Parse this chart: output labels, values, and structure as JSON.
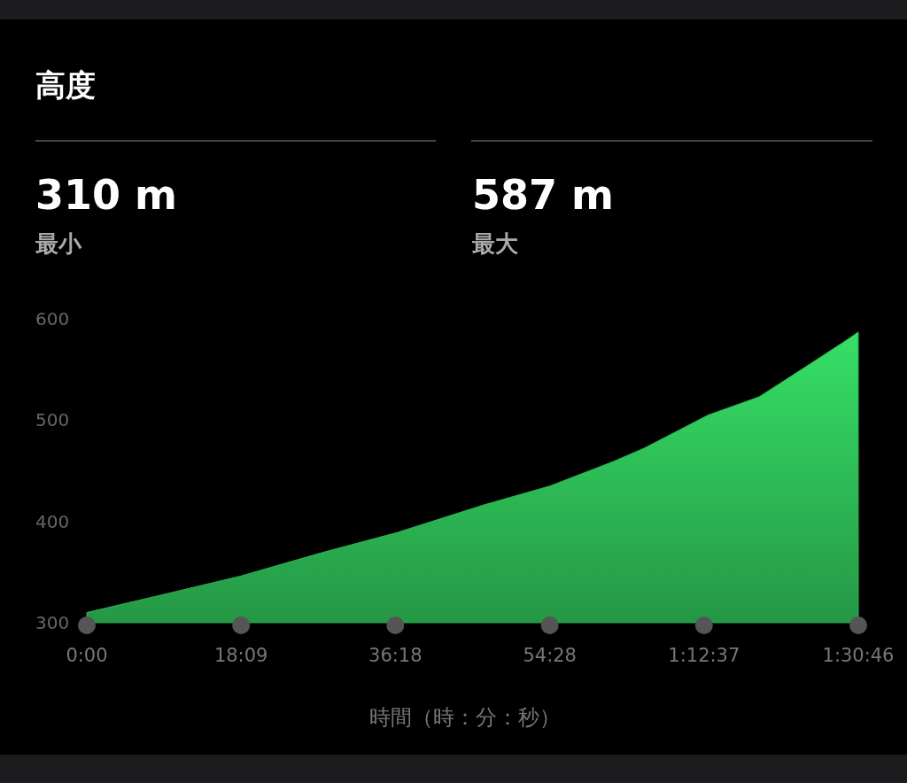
{
  "chart_data": {
    "type": "area",
    "title": "高度",
    "xlabel": "時間（時：分：秒）",
    "annotations": [
      "310 m",
      "最小",
      "587 m",
      "最大"
    ],
    "series": [
      {
        "color": "#2cb553",
        "x": [
          0,
          8.6,
          18.1,
          27.6,
          36.5,
          46.6,
          54.5,
          61.9,
          65.5,
          73.1,
          79.1,
          85,
          89.2,
          90.77
        ],
        "values": [
          310,
          327,
          346,
          369,
          389,
          416,
          435,
          459,
          472,
          505,
          523,
          555,
          578,
          587
        ]
      }
    ],
    "xlim": [
      0,
      90.77
    ],
    "xticks": [
      {
        "value": 0,
        "label": "0:00"
      },
      {
        "value": 18.15,
        "label": "18:09"
      },
      {
        "value": 36.3,
        "label": "36:18"
      },
      {
        "value": 54.47,
        "label": "54:28"
      },
      {
        "value": 72.62,
        "label": "1:12:37"
      },
      {
        "value": 90.77,
        "label": "1:30:46"
      }
    ],
    "ylim": [
      300,
      600
    ],
    "yticks": [
      300,
      400,
      500,
      600
    ],
    "grid": false
  }
}
